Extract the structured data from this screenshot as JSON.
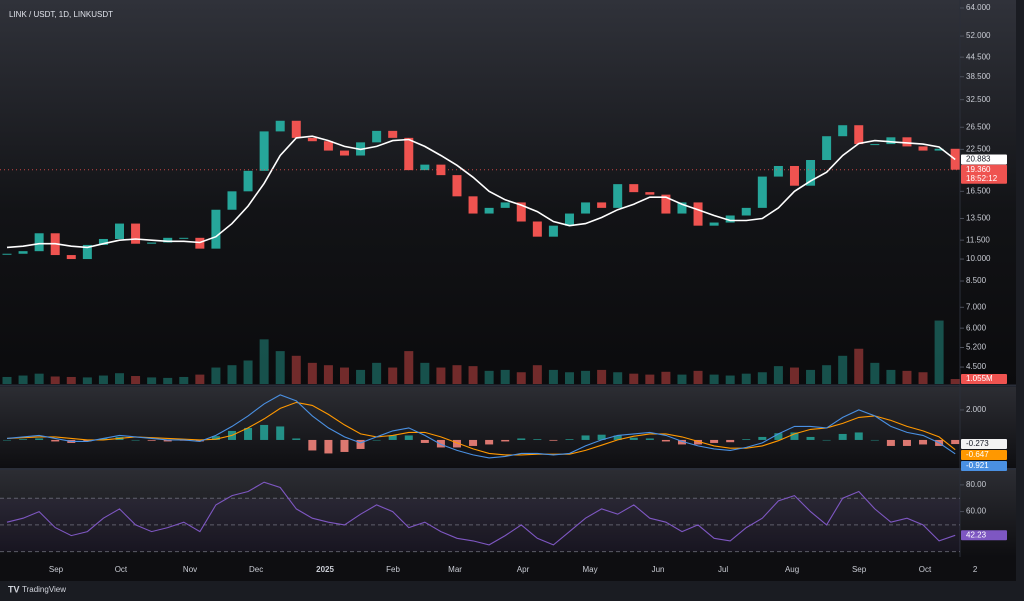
{
  "chart_data": {
    "type": "candlestick",
    "title": "LINK / USDT, 1D, LINKUSDT",
    "log_scale": true,
    "up_color": "#26a69a",
    "down_color": "#ef5350",
    "ylim": [
      3.97,
      66.9
    ],
    "yticks": [
      {
        "value": 64,
        "label": "64.000"
      },
      {
        "value": 52,
        "label": "52.000"
      },
      {
        "value": 44.5,
        "label": "44.500"
      },
      {
        "value": 38.5,
        "label": "38.500"
      },
      {
        "value": 32.5,
        "label": "32.500"
      },
      {
        "value": 26.5,
        "label": "26.500"
      },
      {
        "value": 22.5,
        "label": "22.500"
      },
      {
        "value": 16.5,
        "label": "16.500"
      },
      {
        "value": 13.5,
        "label": "13.500"
      },
      {
        "value": 11.5,
        "label": "11.500"
      },
      {
        "value": 10,
        "label": "10.000"
      },
      {
        "value": 8.5,
        "label": "8.500"
      },
      {
        "value": 7,
        "label": "7.000"
      },
      {
        "value": 6,
        "label": "6.000"
      },
      {
        "value": 5.2,
        "label": "5.200"
      },
      {
        "value": 4.5,
        "label": "4.500"
      }
    ],
    "xlim": [
      -0.4356,
      59.3
    ],
    "xticks": [
      {
        "value": 3.05,
        "label": "Sep"
      },
      {
        "value": 7.09,
        "label": "Oct"
      },
      {
        "value": 11.39,
        "label": "Nov"
      },
      {
        "value": 15.5,
        "label": "Dec"
      },
      {
        "value": 19.79,
        "label": "2025"
      },
      {
        "value": 24.02,
        "label": "Feb"
      },
      {
        "value": 27.88,
        "label": "Mar"
      },
      {
        "value": 32.11,
        "label": "Apr"
      },
      {
        "value": 36.28,
        "label": "May"
      },
      {
        "value": 40.51,
        "label": "Jun"
      },
      {
        "value": 44.56,
        "label": "Jul"
      },
      {
        "value": 48.85,
        "label": "Aug"
      },
      {
        "value": 53.02,
        "label": "Sep"
      },
      {
        "value": 57.12,
        "label": "Oct"
      },
      {
        "value": 60.24,
        "label": "2"
      }
    ],
    "price": {
      "values": [
        10.4,
        10.6,
        12.1,
        10.3,
        10.0,
        11.1,
        11.6,
        13.0,
        11.2,
        11.3,
        11.7,
        11.7,
        10.8,
        14.4,
        16.5,
        19.2,
        25.7,
        27.8,
        24.5,
        23.9,
        22.3,
        21.5,
        23.7,
        25.8,
        24.5,
        19.3,
        20.1,
        18.6,
        15.9,
        14.0,
        14.6,
        15.2,
        13.2,
        11.8,
        12.8,
        14.0,
        15.2,
        14.6,
        17.4,
        16.4,
        16.1,
        14.0,
        15.2,
        12.8,
        13.1,
        13.8,
        14.6,
        18.4,
        19.9,
        17.2,
        20.8,
        24.8,
        26.9,
        23.4,
        23.4,
        24.6,
        23.0,
        22.3,
        22.6,
        19.36
      ],
      "tag_label": "19.360",
      "countdown": "18:52:12"
    },
    "ma": {
      "color": "#ffffff",
      "values": [
        10.9,
        11.0,
        11.2,
        11.2,
        11.0,
        10.9,
        11.2,
        11.5,
        11.6,
        11.5,
        11.4,
        11.4,
        11.3,
        11.8,
        13.0,
        14.8,
        17.5,
        21.5,
        24.5,
        24.8,
        24.0,
        23.0,
        22.5,
        23.0,
        24.0,
        24.2,
        23.0,
        21.5,
        20.0,
        18.3,
        16.5,
        15.5,
        14.9,
        14.2,
        13.2,
        12.8,
        13.0,
        13.6,
        14.4,
        15.0,
        15.8,
        15.8,
        15.0,
        14.4,
        13.8,
        13.3,
        13.3,
        13.5,
        14.6,
        16.5,
        17.8,
        19.0,
        21.5,
        23.5,
        24.0,
        23.8,
        23.6,
        23.4,
        22.9,
        20.883
      ]
    },
    "volume": {
      "lim": [
        0,
        20
      ],
      "values": [
        1.5,
        1.8,
        2.2,
        1.6,
        1.5,
        1.4,
        1.8,
        2.3,
        1.7,
        1.4,
        1.3,
        1.5,
        2.0,
        3.5,
        4.0,
        5.0,
        9.5,
        7.0,
        6.0,
        4.5,
        4.0,
        3.5,
        3.0,
        4.5,
        3.5,
        7.0,
        4.5,
        3.5,
        4.0,
        3.8,
        2.8,
        3.0,
        2.5,
        4.0,
        3.0,
        2.5,
        2.8,
        3.0,
        2.5,
        2.2,
        2.0,
        2.6,
        2.0,
        2.8,
        2.0,
        1.8,
        2.2,
        2.5,
        3.8,
        3.5,
        3.0,
        4.0,
        6.0,
        7.5,
        4.5,
        3.0,
        2.8,
        2.5,
        13.5,
        1.055
      ],
      "tag_label": "1.055M"
    },
    "macd": {
      "ylim": [
        -1.87,
        3.53
      ],
      "yticks": [
        {
          "value": 2,
          "label": "2.000"
        }
      ],
      "macd": {
        "color": "#4a90e2",
        "values": [
          0.1,
          0.2,
          0.3,
          0.1,
          -0.1,
          -0.1,
          0.1,
          0.3,
          0.2,
          0.1,
          0.0,
          0.0,
          -0.1,
          0.3,
          0.9,
          1.6,
          2.4,
          3.0,
          2.6,
          1.6,
          0.8,
          0.2,
          -0.2,
          0.2,
          0.6,
          0.8,
          0.3,
          -0.3,
          -0.7,
          -1.0,
          -1.2,
          -1.1,
          -0.9,
          -0.9,
          -1.0,
          -0.9,
          -0.4,
          0.0,
          0.3,
          0.4,
          0.5,
          0.3,
          -0.1,
          -0.4,
          -0.6,
          -0.7,
          -0.5,
          -0.2,
          0.4,
          0.9,
          0.9,
          0.8,
          1.5,
          2.0,
          1.6,
          0.9,
          0.5,
          0.3,
          -0.2,
          -0.921
        ]
      },
      "signal": {
        "color": "#ff9800",
        "values": [
          0.1,
          0.15,
          0.2,
          0.2,
          0.1,
          0.0,
          0.0,
          0.1,
          0.2,
          0.15,
          0.1,
          0.05,
          0.0,
          0.05,
          0.3,
          0.8,
          1.4,
          2.1,
          2.5,
          2.3,
          1.7,
          1.0,
          0.4,
          0.2,
          0.3,
          0.5,
          0.5,
          0.2,
          -0.2,
          -0.6,
          -0.9,
          -1.0,
          -1.0,
          -0.95,
          -0.95,
          -0.95,
          -0.7,
          -0.35,
          0.0,
          0.25,
          0.4,
          0.4,
          0.2,
          -0.1,
          -0.4,
          -0.55,
          -0.55,
          -0.4,
          -0.05,
          0.4,
          0.7,
          0.8,
          1.1,
          1.5,
          1.6,
          1.3,
          0.9,
          0.6,
          0.2,
          -0.647
        ]
      },
      "histogram": {
        "up_color": "#26a69a",
        "down_color": "#ff8a80",
        "values": [
          0.0,
          0.05,
          0.1,
          -0.1,
          -0.2,
          -0.1,
          0.1,
          0.2,
          0.0,
          -0.05,
          -0.1,
          -0.05,
          -0.1,
          0.25,
          0.6,
          0.8,
          1.0,
          0.9,
          0.1,
          -0.7,
          -0.9,
          -0.8,
          -0.6,
          0.0,
          0.3,
          0.3,
          -0.2,
          -0.5,
          -0.5,
          -0.4,
          -0.3,
          -0.1,
          0.1,
          0.05,
          -0.05,
          0.05,
          0.3,
          0.35,
          0.3,
          0.15,
          0.1,
          -0.1,
          -0.3,
          -0.3,
          -0.2,
          -0.15,
          0.05,
          0.2,
          0.45,
          0.5,
          0.2,
          0.0,
          0.4,
          0.5,
          0.0,
          -0.4,
          -0.4,
          -0.3,
          -0.4,
          -0.273
        ]
      }
    },
    "rsi": {
      "ylim": [
        26.7,
        90.4
      ],
      "yticks": [
        {
          "value": 80,
          "label": "80.00"
        },
        {
          "value": 60,
          "label": "60.00"
        }
      ],
      "bands": [
        70,
        50,
        30
      ],
      "color": "#7e57c2",
      "values": [
        52,
        55,
        60,
        48,
        42,
        45,
        55,
        62,
        50,
        45,
        48,
        52,
        45,
        65,
        72,
        75,
        82,
        78,
        62,
        55,
        52,
        50,
        58,
        65,
        60,
        48,
        52,
        45,
        40,
        38,
        35,
        42,
        50,
        40,
        35,
        45,
        55,
        62,
        58,
        65,
        55,
        52,
        45,
        50,
        40,
        38,
        48,
        55,
        68,
        72,
        60,
        50,
        70,
        75,
        62,
        52,
        55,
        50,
        38,
        42.23
      ]
    },
    "footer": "TradingView"
  }
}
